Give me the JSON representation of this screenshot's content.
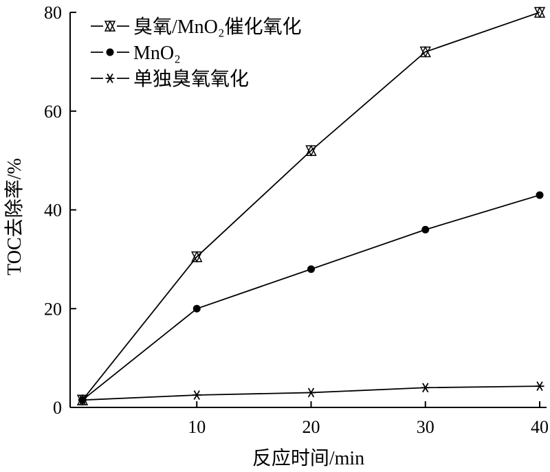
{
  "chart_data": {
    "type": "line",
    "xlabel": "反应时间/min",
    "ylabel": "TOC去除率/%",
    "x": [
      0,
      10,
      20,
      30,
      40
    ],
    "xticks": [
      10,
      20,
      30,
      40
    ],
    "xlim": [
      0,
      40
    ],
    "yticks": [
      0,
      20,
      40,
      60,
      80
    ],
    "ylim": [
      0,
      80
    ],
    "grid": false,
    "legend_position": "top-left",
    "series": [
      {
        "name": "臭氧/MnO₂催化氧化",
        "marker": "hourglass-triangle",
        "color": "#000000",
        "values": [
          1.5,
          30.5,
          52,
          72,
          80
        ]
      },
      {
        "name": "MnO₂",
        "marker": "filled-circle",
        "color": "#000000",
        "values": [
          1.5,
          20,
          28,
          36,
          43
        ]
      },
      {
        "name": "单独臭氧氧化",
        "marker": "asterisk",
        "color": "#000000",
        "values": [
          1.5,
          2.5,
          3,
          4,
          4.3
        ]
      }
    ]
  }
}
